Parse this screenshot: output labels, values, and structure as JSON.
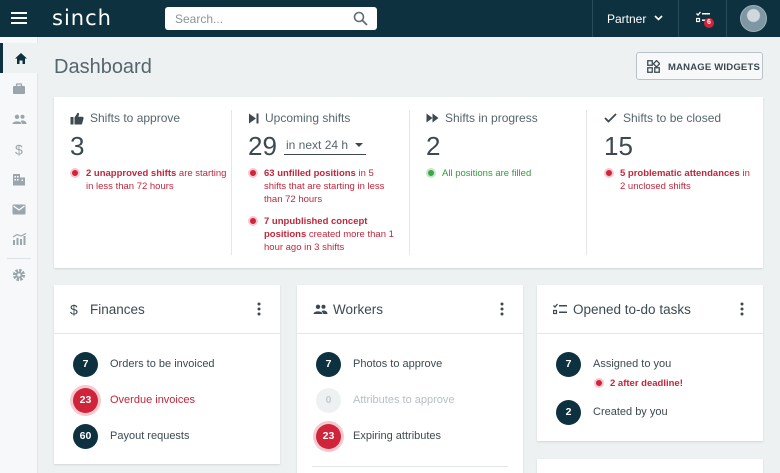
{
  "topbar": {
    "logo": "sinch",
    "search_placeholder": "Search...",
    "partner_label": "Partner",
    "tasks_badge": "6"
  },
  "sidebar": {
    "items": [
      "home-icon",
      "briefcase-icon",
      "people-icon",
      "dollar-icon",
      "building-icon",
      "mail-icon",
      "chart-icon",
      "gear-icon"
    ]
  },
  "page": {
    "title": "Dashboard",
    "manage_widgets": "MANAGE WIDGETS"
  },
  "stats": {
    "approve": {
      "label": "Shifts to approve",
      "value": "3",
      "alert_bold": "2 unapproved shifts",
      "alert_rest": " are starting in less than 72 hours"
    },
    "upcoming": {
      "label": "Upcoming shifts",
      "value": "29",
      "range": "in next 24 h",
      "alert1_bold": "63 unfilled positions",
      "alert1_rest": " in 5 shifts that are starting in less than 72 hours",
      "alert2_bold": "7 unpublished concept positions",
      "alert2_rest": " created more than 1 hour ago in 3 shifts"
    },
    "progress": {
      "label": "Shifts in progress",
      "value": "2",
      "alert": "All positions are filled"
    },
    "closed": {
      "label": "Shifts to be closed",
      "value": "15",
      "alert_bold": "5 problematic attendances",
      "alert_rest": " in 2 unclosed shifts"
    }
  },
  "finances": {
    "title": "Finances",
    "rows": [
      {
        "count": "7",
        "label": "Orders to be invoiced"
      },
      {
        "count": "23",
        "label": "Overdue invoices"
      },
      {
        "count": "60",
        "label": "Payout requests"
      }
    ]
  },
  "workers": {
    "title": "Workers",
    "rows": [
      {
        "count": "7",
        "label": "Photos to approve"
      },
      {
        "count": "0",
        "label": "Attributes to approve"
      },
      {
        "count": "23",
        "label": "Expiring attributes"
      }
    ]
  },
  "todo": {
    "title": "Opened to-do tasks",
    "assigned": {
      "count": "7",
      "label": "Assigned to you",
      "alert": "2 after deadline!"
    },
    "created": {
      "count": "2",
      "label": "Created by you"
    }
  },
  "colors": {
    "topbar": "#0e3140",
    "alert_red": "#d0243b",
    "ok_green": "#3aa647"
  }
}
